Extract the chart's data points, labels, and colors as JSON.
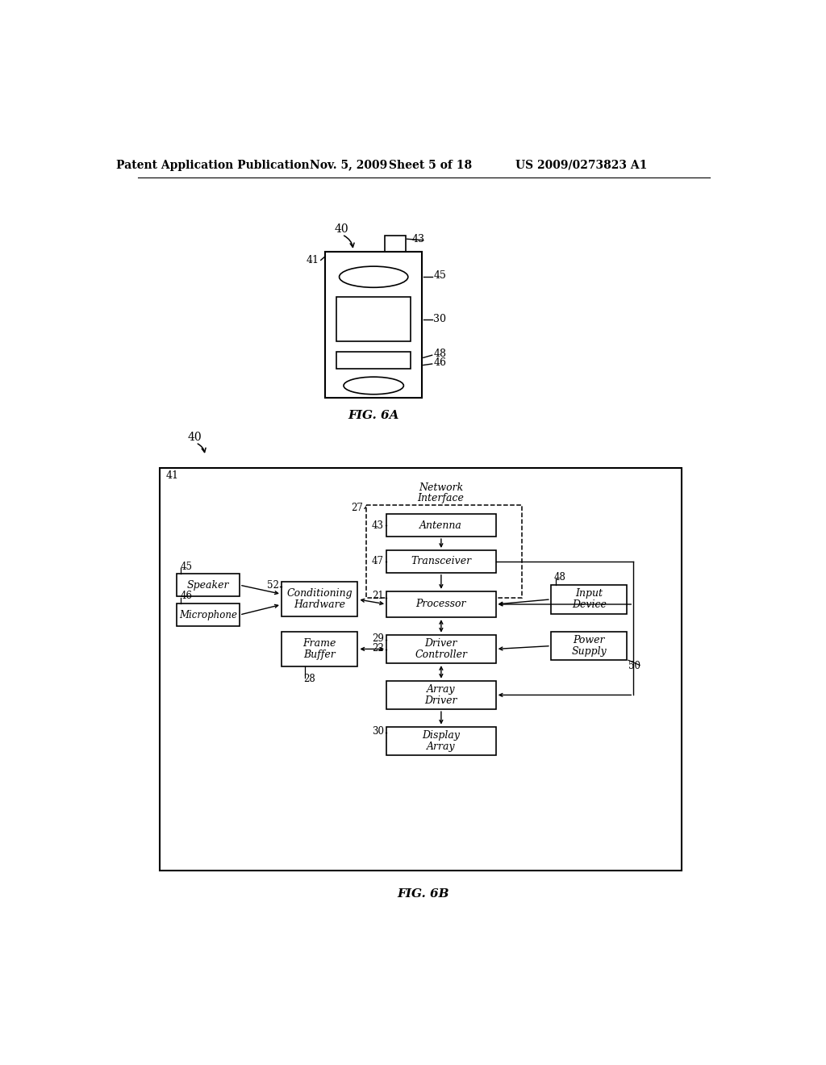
{
  "bg_color": "#ffffff",
  "header_text": "Patent Application Publication",
  "header_date": "Nov. 5, 2009",
  "header_sheet": "Sheet 5 of 18",
  "header_patent": "US 2009/0273823 A1",
  "fig6a_label": "FIG. 6A",
  "fig6b_label": "FIG. 6B"
}
